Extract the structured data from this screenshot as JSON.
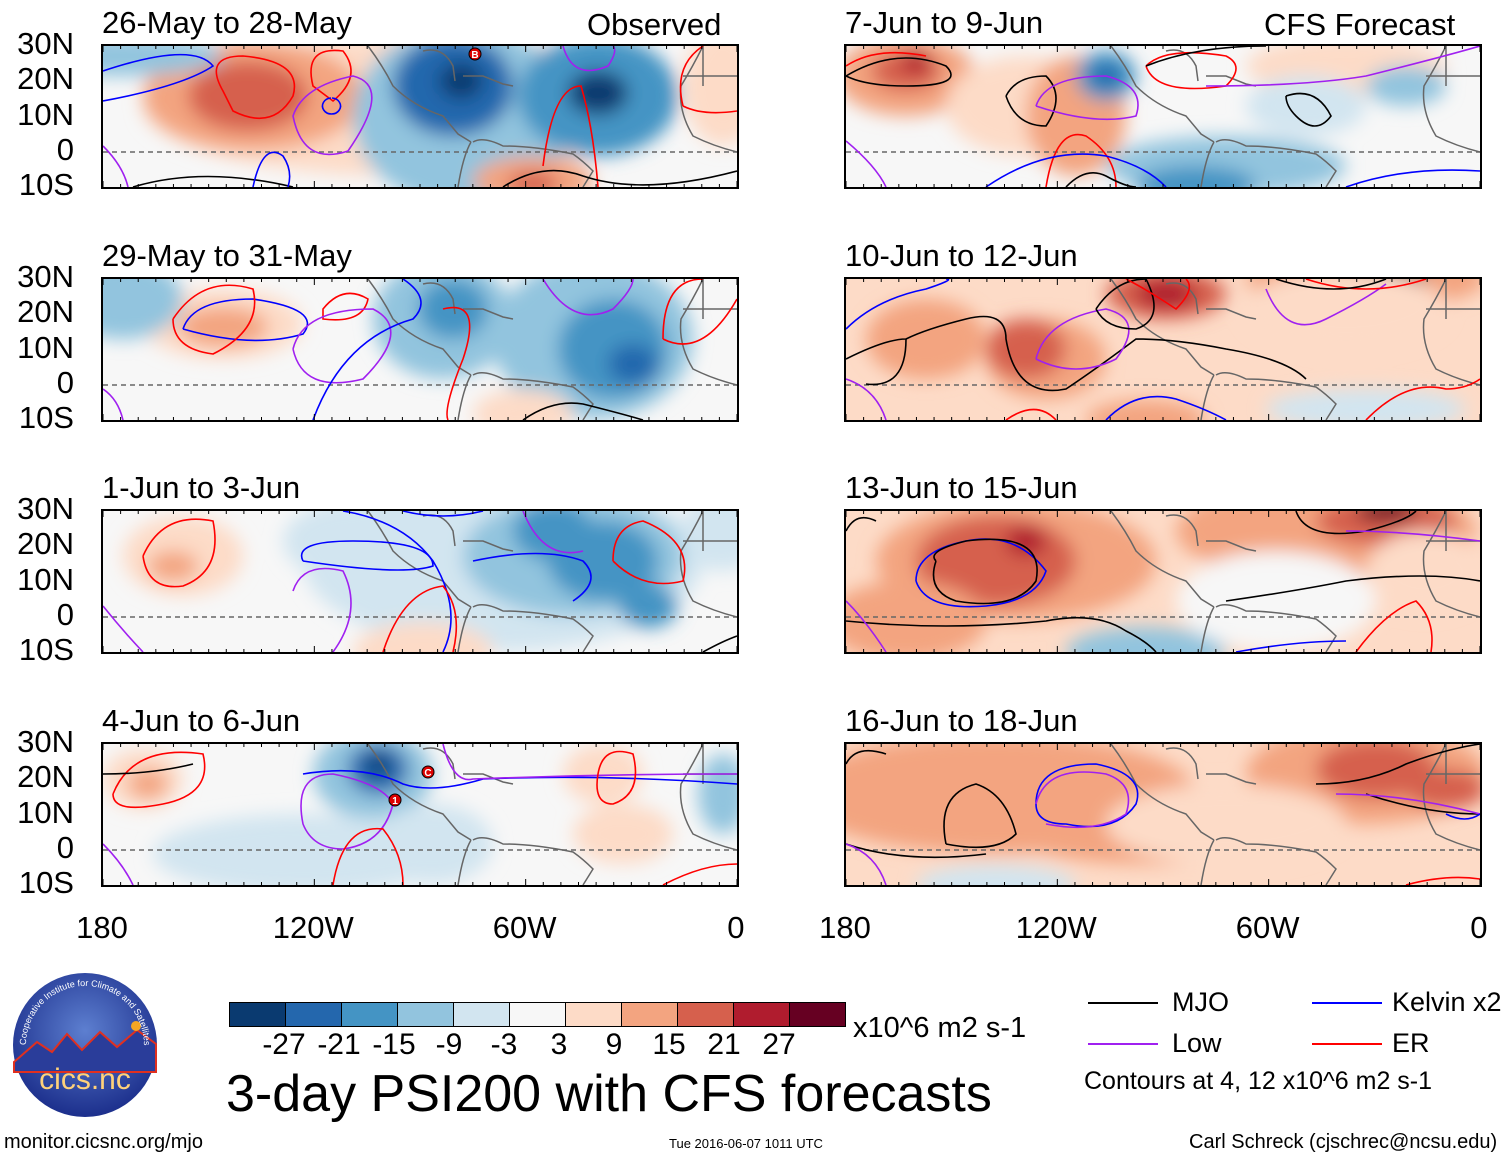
{
  "column_labels": {
    "left": "Observed",
    "right": "CFS Forecast"
  },
  "panels": [
    {
      "title": "26-May to 28-May",
      "column": "left",
      "storm_markers": [
        "B"
      ]
    },
    {
      "title": "29-May to 31-May",
      "column": "left",
      "storm_markers": []
    },
    {
      "title": "1-Jun to 3-Jun",
      "column": "left",
      "storm_markers": []
    },
    {
      "title": "4-Jun to 6-Jun",
      "column": "left",
      "storm_markers": [
        "C",
        "1"
      ]
    },
    {
      "title": "7-Jun to 9-Jun",
      "column": "right",
      "storm_markers": []
    },
    {
      "title": "10-Jun to 12-Jun",
      "column": "right",
      "storm_markers": []
    },
    {
      "title": "13-Jun to 15-Jun",
      "column": "right",
      "storm_markers": []
    },
    {
      "title": "16-Jun to 18-Jun",
      "column": "right",
      "storm_markers": []
    }
  ],
  "lat_labels": [
    "30N",
    "20N",
    "10N",
    "0",
    "10S"
  ],
  "lon_labels": [
    "180",
    "120W",
    "60W",
    "0"
  ],
  "colorbar": {
    "colors": [
      "#0a3a70",
      "#2467ad",
      "#4494c4",
      "#92c4de",
      "#d2e5f0",
      "#f7f7f7",
      "#fddbc7",
      "#f3a480",
      "#d6604d",
      "#b01c2e",
      "#660022"
    ],
    "labels": [
      "-27",
      "-21",
      "-15",
      "-9",
      "-3",
      "3",
      "9",
      "15",
      "21",
      "27"
    ],
    "units": "x10^6 m2 s-1"
  },
  "title": "3-day PSI200 with CFS forecasts",
  "legend": {
    "items": [
      {
        "label": "MJO",
        "color": "#000000"
      },
      {
        "label": "Kelvin x2",
        "color": "#0000ff"
      },
      {
        "label": "Low",
        "color": "#a020f0"
      },
      {
        "label": "ER",
        "color": "#ff0000"
      }
    ],
    "contours_note": "Contours at 4, 12 x10^6 m2 s-1"
  },
  "logo_text": "cics.nc",
  "logo_ring_text": "Cooperative Institute for Climate and Satellites",
  "footer": {
    "url": "monitor.cicsnc.org/mjo",
    "timestamp": "Tue 2016-06-07 1011 UTC",
    "author": "Carl Schreck (cjschrec@ncsu.edu)"
  }
}
